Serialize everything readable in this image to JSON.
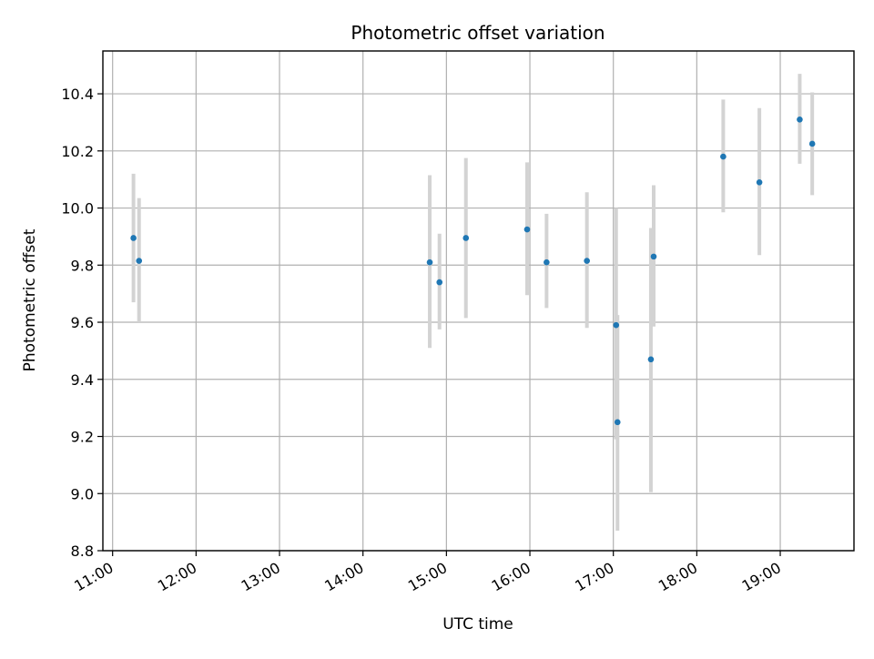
{
  "chart_data": {
    "type": "scatter",
    "title": "Photometric offset variation",
    "xlabel": "UTC time",
    "ylabel": "Photometric offset",
    "grid": true,
    "x_ticks": [
      "11:00",
      "12:00",
      "13:00",
      "14:00",
      "15:00",
      "16:00",
      "17:00",
      "18:00",
      "19:00"
    ],
    "x_range": [
      "10:53",
      "19:53"
    ],
    "ylim": [
      8.8,
      10.55
    ],
    "y_ticks": [
      "8.8",
      "9.0",
      "9.2",
      "9.4",
      "9.6",
      "9.8",
      "10.0",
      "10.2",
      "10.4"
    ],
    "colors": {
      "points": "#1f77b4",
      "error_bars": "#d3d3d3"
    },
    "points": [
      {
        "x": "11:15",
        "y": 9.895,
        "err_low": 9.67,
        "err_high": 10.12
      },
      {
        "x": "11:19",
        "y": 9.815,
        "err_low": 9.6,
        "err_high": 10.035
      },
      {
        "x": "14:48",
        "y": 9.81,
        "err_low": 9.51,
        "err_high": 10.115
      },
      {
        "x": "14:55",
        "y": 9.74,
        "err_low": 9.575,
        "err_high": 9.91
      },
      {
        "x": "15:14",
        "y": 9.895,
        "err_low": 9.615,
        "err_high": 10.175
      },
      {
        "x": "15:58",
        "y": 9.925,
        "err_low": 9.695,
        "err_high": 10.16
      },
      {
        "x": "16:12",
        "y": 9.81,
        "err_low": 9.65,
        "err_high": 9.98
      },
      {
        "x": "16:41",
        "y": 9.815,
        "err_low": 9.58,
        "err_high": 10.055
      },
      {
        "x": "17:02",
        "y": 9.59,
        "err_low": 9.19,
        "err_high": 10.0
      },
      {
        "x": "17:03",
        "y": 9.25,
        "err_low": 8.87,
        "err_high": 9.625
      },
      {
        "x": "17:27",
        "y": 9.47,
        "err_low": 9.005,
        "err_high": 9.93
      },
      {
        "x": "17:29",
        "y": 9.83,
        "err_low": 9.585,
        "err_high": 10.08
      },
      {
        "x": "18:19",
        "y": 10.18,
        "err_low": 9.985,
        "err_high": 10.38
      },
      {
        "x": "18:45",
        "y": 10.09,
        "err_low": 9.835,
        "err_high": 10.35
      },
      {
        "x": "19:14",
        "y": 10.31,
        "err_low": 10.155,
        "err_high": 10.47
      },
      {
        "x": "19:23",
        "y": 10.225,
        "err_low": 10.045,
        "err_high": 10.405
      }
    ]
  }
}
